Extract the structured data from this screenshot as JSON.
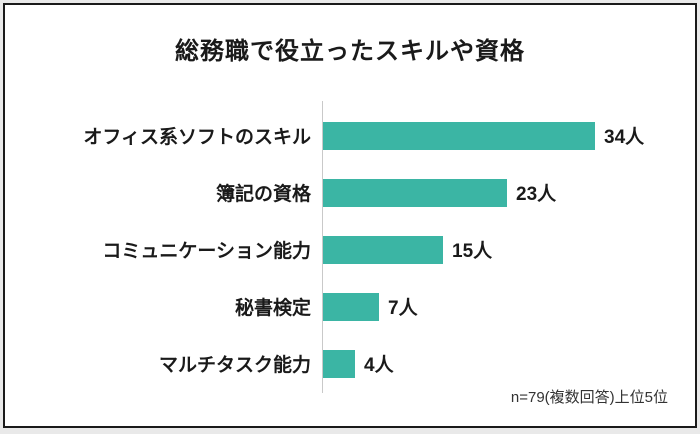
{
  "page": {
    "title": "総務職で役立ったスキルや資格",
    "footer_note": "n=79(複数回答)上位5位"
  },
  "chart_data": {
    "type": "bar",
    "orientation": "horizontal",
    "title": "総務職で役立ったスキルや資格",
    "categories": [
      "オフィス系ソフトのスキル",
      "簿記の資格",
      "コミュニケーション能力",
      "秘書検定",
      "マルチタスク能力"
    ],
    "values": [
      34,
      23,
      15,
      7,
      4
    ],
    "unit": "人",
    "value_labels": [
      "34人",
      "23人",
      "15人",
      "7人",
      "4人"
    ],
    "xlim": [
      0,
      34
    ],
    "grid": false,
    "legend": false,
    "bar_color": "#3bb5a4",
    "axis_line_color": "#c9c9c9",
    "annotation": "n=79(複数回答)上位5位"
  }
}
